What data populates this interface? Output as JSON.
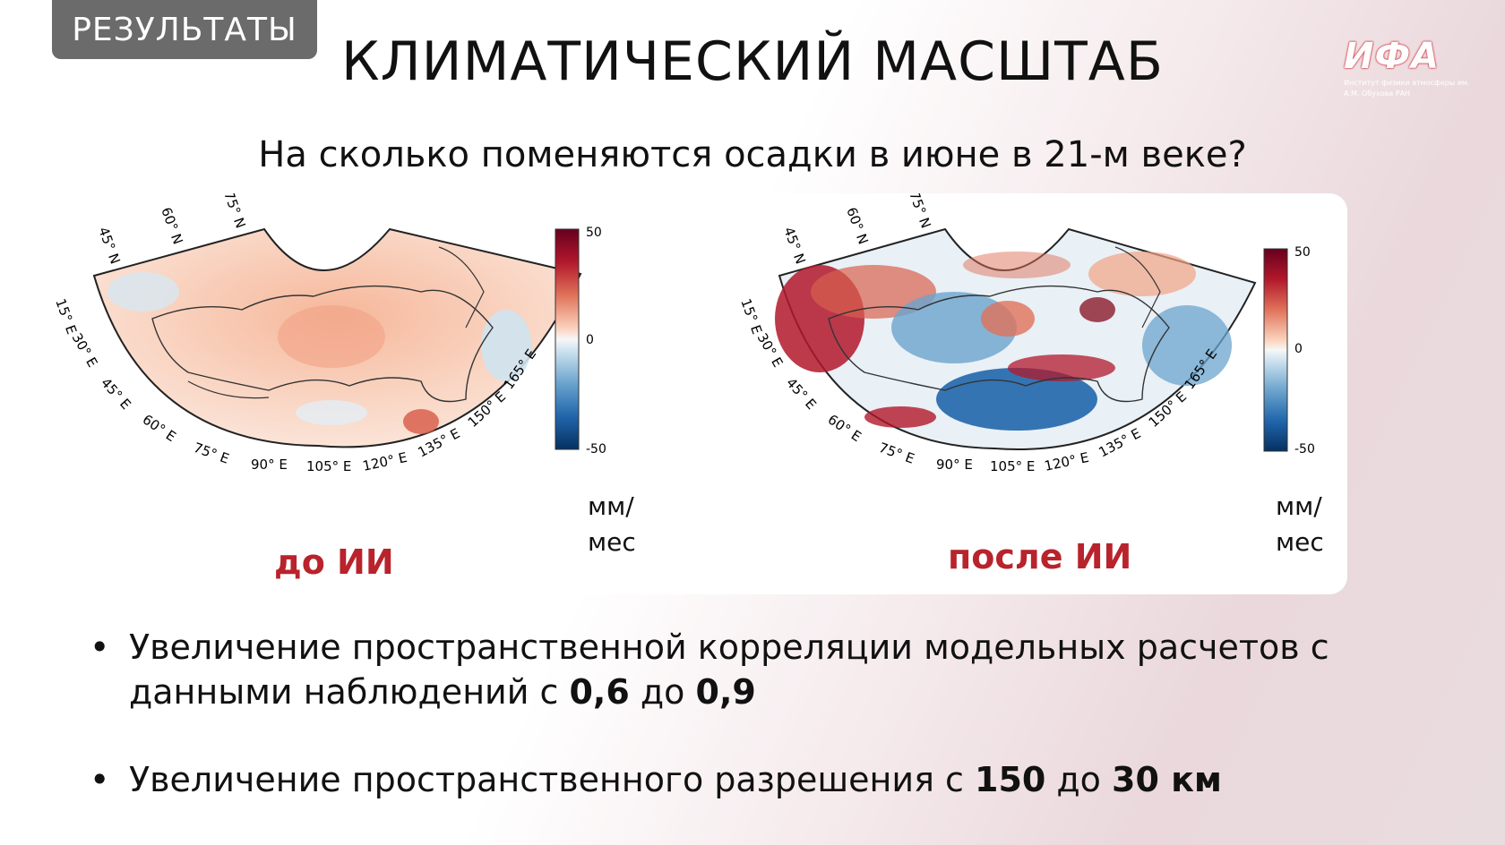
{
  "header": {
    "section_tag": "РЕЗУЛЬТАТЫ",
    "title": "КЛИМАТИЧЕСКИЙ МАСШТАБ"
  },
  "logo": {
    "mark": "ИФА",
    "text_line1": "Институт физики атмосферы им.",
    "text_line2": "А.М. Обухова РАН",
    "accent_color": "#d33a44"
  },
  "question": "На сколько поменяются осадки в июне в 21-м веке?",
  "maps": {
    "lat_labels": [
      "15° E",
      "30° E",
      "45° E",
      "60° E",
      "75° E",
      "90° E",
      "105° E",
      "120° E",
      "135° E",
      "150° E",
      "165° E"
    ],
    "lat_circle_labels": [
      "45° N",
      "60° N",
      "75° N"
    ],
    "colorbar": {
      "max": "50",
      "mid": "0",
      "min": "-50",
      "unit_line1": "мм/",
      "unit_line2": "мес"
    },
    "left": {
      "caption": "до ИИ"
    },
    "right": {
      "caption": "после ИИ"
    },
    "colors": {
      "positive": "#b2182b",
      "negative": "#2166ac",
      "neutral": "#f7f7f7"
    }
  },
  "bullets": [
    {
      "text_a": "Увеличение пространственной корреляции модельных расчетов с данными наблюдений с ",
      "value_a": "0,6",
      "text_b": " до ",
      "value_b": "0,9"
    },
    {
      "text_a": "Увеличение пространственного разрешения с ",
      "value_a": "150",
      "text_b": " до ",
      "value_b": "30 км"
    }
  ]
}
